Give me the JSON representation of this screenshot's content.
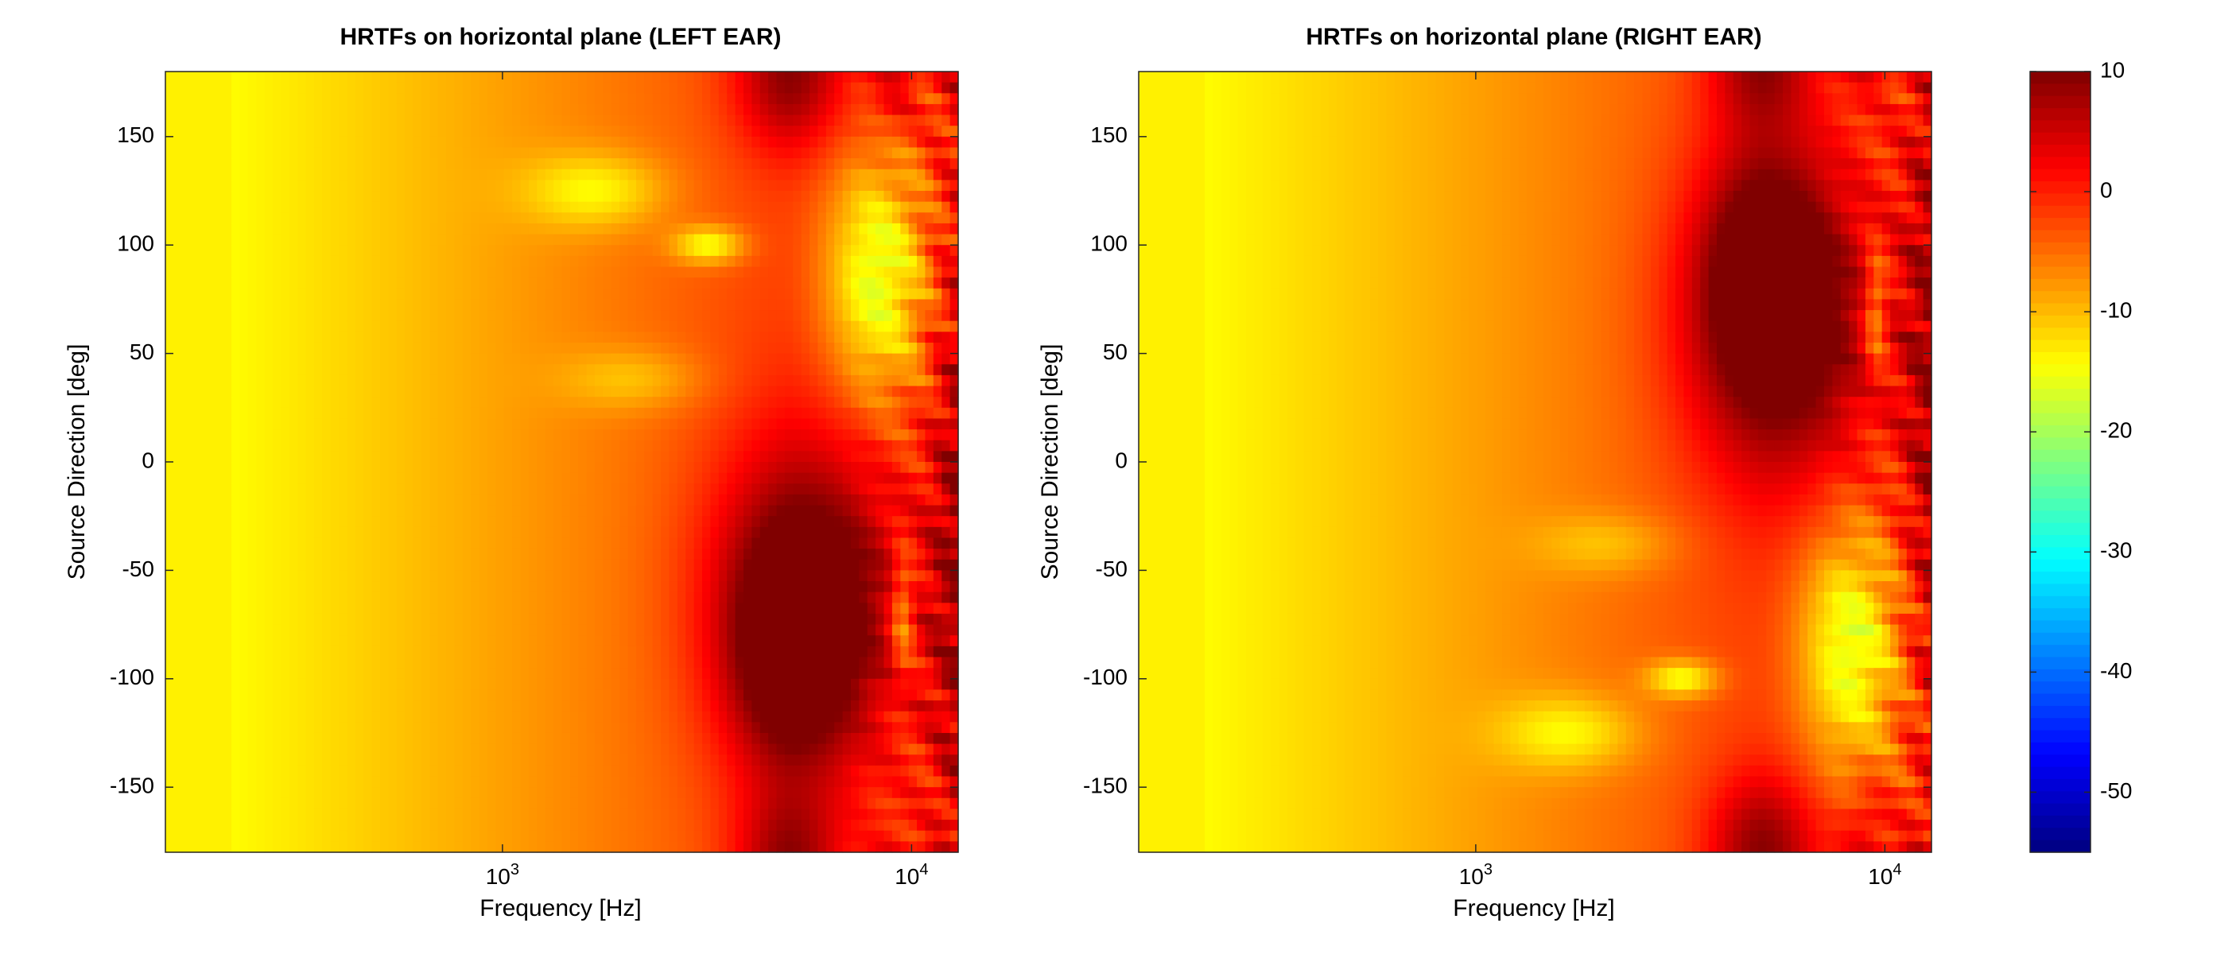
{
  "chart_data": [
    {
      "type": "heatmap",
      "title": "HRTFs on horizontal plane (LEFT EAR)",
      "xlabel": "Frequency [Hz]",
      "ylabel": "Source Direction [deg]",
      "x_scale": "log",
      "xlim": [
        150,
        13000
      ],
      "ylim": [
        -180,
        180
      ],
      "x_ticks": [
        {
          "value": 1000,
          "base": "10",
          "exp": "3"
        },
        {
          "value": 10000,
          "base": "10",
          "exp": "4"
        }
      ],
      "y_ticks": [
        -150,
        -100,
        -50,
        0,
        50,
        100,
        150
      ],
      "y_tick_labels": [
        "-150",
        "-100",
        "-50",
        "0",
        "50",
        "100",
        "150"
      ],
      "features": [
        {
          "f": 5500,
          "az": -65,
          "sf": 0.16,
          "sa": 50,
          "a": 17
        },
        {
          "f": 5000,
          "az": -95,
          "sf": 0.1,
          "sa": 35,
          "a": 8
        },
        {
          "f": 5000,
          "az": 175,
          "sf": 0.09,
          "sa": 22,
          "a": 10
        },
        {
          "f": 9000,
          "az": 170,
          "sf": 0.04,
          "sa": 15,
          "a": 5
        },
        {
          "f": 13000,
          "az": -40,
          "sf": 0.05,
          "sa": 120,
          "a": 9
        },
        {
          "f": 1700,
          "az": 125,
          "sf": 0.12,
          "sa": 12,
          "a": -8
        },
        {
          "f": 3200,
          "az": 100,
          "sf": 0.06,
          "sa": 6,
          "a": -11
        },
        {
          "f": 2100,
          "az": 38,
          "sf": 0.12,
          "sa": 10,
          "a": -5
        },
        {
          "f": 8200,
          "az": 85,
          "sf": 0.09,
          "sa": 40,
          "a": -14
        },
        {
          "f": 9500,
          "az": -70,
          "sf": 0.02,
          "sa": 20,
          "a": -10
        }
      ]
    },
    {
      "type": "heatmap",
      "title": "HRTFs on horizontal plane (RIGHT EAR)",
      "xlabel": "Frequency [Hz]",
      "ylabel": "Source Direction [deg]",
      "x_scale": "log",
      "xlim": [
        150,
        13000
      ],
      "ylim": [
        -180,
        180
      ],
      "x_ticks": [
        {
          "value": 1000,
          "base": "10",
          "exp": "3"
        },
        {
          "value": 10000,
          "base": "10",
          "exp": "4"
        }
      ],
      "y_ticks": [
        -150,
        -100,
        -50,
        0,
        50,
        100,
        150
      ],
      "y_tick_labels": [
        "-150",
        "-100",
        "-50",
        "0",
        "50",
        "100",
        "150"
      ],
      "features": [
        {
          "f": 5500,
          "az": 65,
          "sf": 0.16,
          "sa": 50,
          "a": 17
        },
        {
          "f": 5000,
          "az": 95,
          "sf": 0.1,
          "sa": 35,
          "a": 8
        },
        {
          "f": 5000,
          "az": -175,
          "sf": 0.09,
          "sa": 22,
          "a": 10
        },
        {
          "f": 9000,
          "az": -170,
          "sf": 0.04,
          "sa": 15,
          "a": 5
        },
        {
          "f": 13000,
          "az": 40,
          "sf": 0.05,
          "sa": 120,
          "a": 9
        },
        {
          "f": 1700,
          "az": -125,
          "sf": 0.12,
          "sa": 12,
          "a": -8
        },
        {
          "f": 3200,
          "az": -100,
          "sf": 0.06,
          "sa": 6,
          "a": -11
        },
        {
          "f": 2100,
          "az": -38,
          "sf": 0.12,
          "sa": 10,
          "a": -5
        },
        {
          "f": 8200,
          "az": -85,
          "sf": 0.09,
          "sa": 40,
          "a": -14
        },
        {
          "f": 9500,
          "az": 70,
          "sf": 0.02,
          "sa": 20,
          "a": -10
        }
      ]
    }
  ],
  "colorbar": {
    "colormap": "jet",
    "range": [
      -55,
      10
    ],
    "ticks": [
      10,
      0,
      -10,
      -20,
      -30,
      -40,
      -50
    ],
    "tick_labels": [
      "10",
      "0",
      "-10",
      "-20",
      "-30",
      "-40",
      "-50"
    ]
  }
}
